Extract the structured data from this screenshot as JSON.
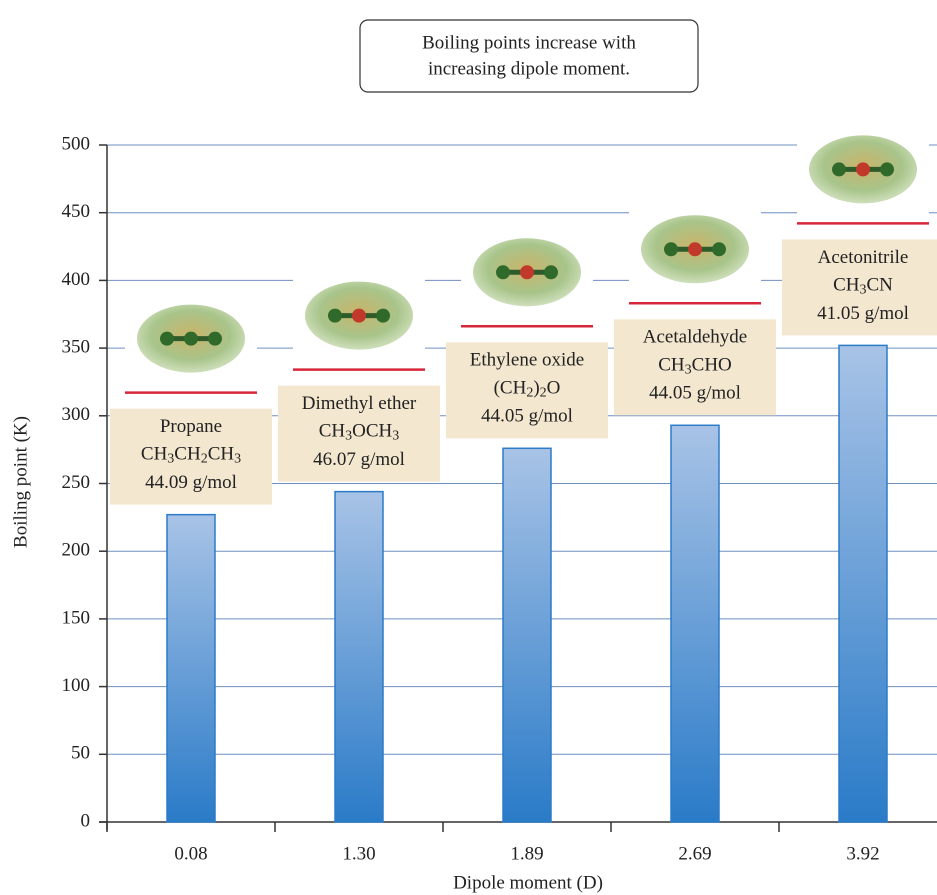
{
  "chart_data": {
    "type": "bar",
    "annotation": [
      "Boiling points increase with",
      "increasing dipole moment."
    ],
    "x_label": "Dipole moment (D)",
    "y_label": "Boiling point (K)",
    "categories": [
      "0.08",
      "1.30",
      "1.89",
      "2.69",
      "3.92"
    ],
    "values": [
      227,
      244,
      276,
      293,
      352
    ],
    "molecules": [
      {
        "name": "Propane",
        "formula": "CH3CH2CH3",
        "mass": "44.09 g/mol"
      },
      {
        "name": "Dimethyl ether",
        "formula": "CH3OCH3",
        "mass": "46.07 g/mol"
      },
      {
        "name": "Ethylene oxide",
        "formula": "(CH2)2O",
        "mass": "44.05 g/mol"
      },
      {
        "name": "Acetaldehyde",
        "formula": "CH3CHO",
        "mass": "44.05 g/mol"
      },
      {
        "name": "Acetonitrile",
        "formula": "CH3CN",
        "mass": "41.05 g/mol"
      }
    ],
    "color": "#2b7bc9",
    "ylim": [
      0,
      500
    ],
    "yticks": [
      0,
      50,
      100,
      150,
      200,
      250,
      300,
      350,
      400,
      450,
      500
    ],
    "grid": true
  }
}
